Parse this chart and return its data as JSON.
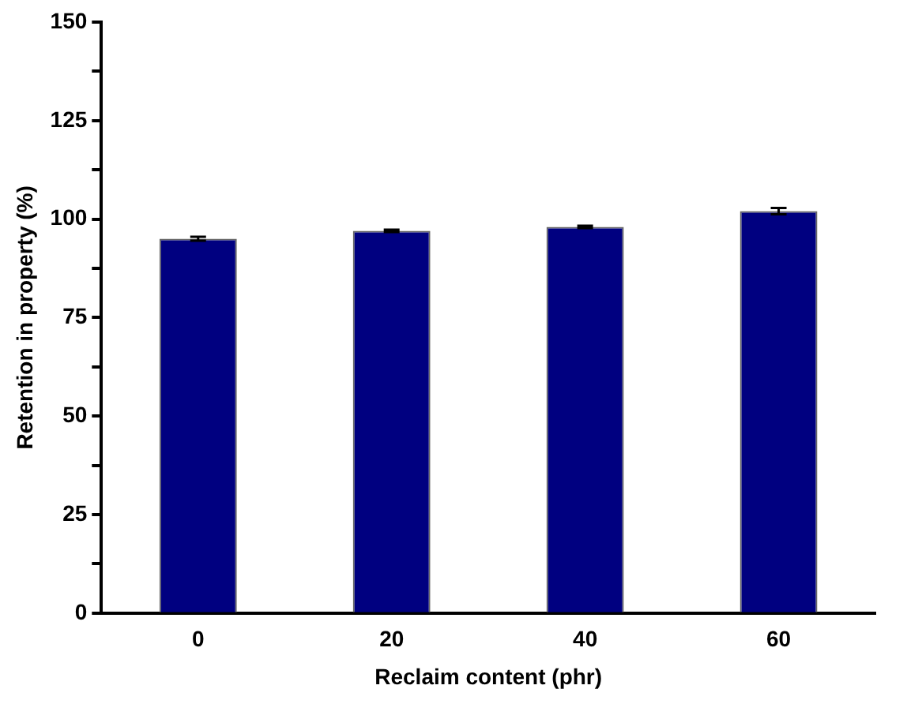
{
  "chart_data": {
    "type": "bar",
    "xlabel": "Reclaim content (phr)",
    "ylabel": "Retention in property (%)",
    "categories": [
      "0",
      "20",
      "40",
      "60"
    ],
    "values": [
      95,
      97,
      98,
      102
    ],
    "errors": [
      0.5,
      0.3,
      0.3,
      0.8
    ],
    "color": "#000080",
    "ylim": [
      0,
      150
    ],
    "yticks": [
      0,
      {
        "value": 12.5,
        "label": null
      },
      25,
      {
        "value": 37.5,
        "label": null
      },
      50,
      {
        "value": 62.5,
        "label": null
      },
      75,
      {
        "value": 87.5,
        "label": null
      },
      100,
      {
        "value": 112.5,
        "label": null
      },
      125,
      {
        "value": 137.5,
        "label": null
      },
      150
    ],
    "grid": false,
    "legend": false
  }
}
